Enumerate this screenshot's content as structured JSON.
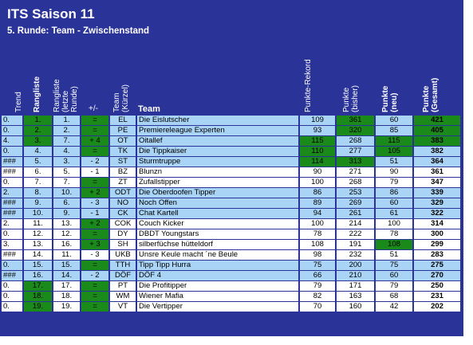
{
  "title": "ITS Saison 11",
  "subtitle": "5. Runde: Team - Zwischenstand",
  "headers": {
    "trend": "Trend",
    "rang": "Rangliste",
    "rang_prev": "Rangliste (letzte Runde)",
    "delta": "+/-",
    "team_short": "Team (Kürzel)",
    "team": "Team",
    "rekord": "Punkte-Rekord",
    "bisher": "Punkte (bisher)",
    "neu": "Punkte (neu)",
    "gesamt": "Punkte (Gesamt)"
  },
  "rows": [
    {
      "trend": "0.",
      "rang": "1.",
      "prev": "1.",
      "delta": "=",
      "short": "EL",
      "team": "Die Eislutscher",
      "rekord": "109",
      "bisher": "361",
      "neu": "60",
      "gesamt": "421"
    },
    {
      "trend": "0.",
      "rang": "2.",
      "prev": "2.",
      "delta": "=",
      "short": "PE",
      "team": "Premiereleague Experten",
      "rekord": "93",
      "bisher": "320",
      "neu": "85",
      "gesamt": "405"
    },
    {
      "trend": "4.",
      "rang": "3.",
      "prev": "7.",
      "delta": "+ 4",
      "short": "OT",
      "team": "Oitallef",
      "rekord": "115",
      "bisher": "268",
      "neu": "115",
      "gesamt": "383"
    },
    {
      "trend": "0.",
      "rang": "4.",
      "prev": "4.",
      "delta": "=",
      "short": "TK",
      "team": "Die Tippkaiser",
      "rekord": "110",
      "bisher": "277",
      "neu": "105",
      "gesamt": "382"
    },
    {
      "trend": "###",
      "rang": "5.",
      "prev": "3.",
      "delta": "- 2",
      "short": "ST",
      "team": "Sturmtruppe",
      "rekord": "114",
      "bisher": "313",
      "neu": "51",
      "gesamt": "364"
    },
    {
      "trend": "###",
      "rang": "6.",
      "prev": "5.",
      "delta": "- 1",
      "short": "BZ",
      "team": "Blunzn",
      "rekord": "90",
      "bisher": "271",
      "neu": "90",
      "gesamt": "361"
    },
    {
      "trend": "0.",
      "rang": "7.",
      "prev": "7.",
      "delta": "=",
      "short": "ZT",
      "team": "Zufallstipper",
      "rekord": "100",
      "bisher": "268",
      "neu": "79",
      "gesamt": "347"
    },
    {
      "trend": "2.",
      "rang": "8.",
      "prev": "10.",
      "delta": "+ 2",
      "short": "ODT",
      "team": "Die Oberdoofen Tipper",
      "rekord": "86",
      "bisher": "253",
      "neu": "86",
      "gesamt": "339"
    },
    {
      "trend": "###",
      "rang": "9.",
      "prev": "6.",
      "delta": "- 3",
      "short": "NO",
      "team": "Noch Offen",
      "rekord": "89",
      "bisher": "269",
      "neu": "60",
      "gesamt": "329"
    },
    {
      "trend": "###",
      "rang": "10.",
      "prev": "9.",
      "delta": "- 1",
      "short": "CK",
      "team": "Chat Kartell",
      "rekord": "94",
      "bisher": "261",
      "neu": "61",
      "gesamt": "322"
    },
    {
      "trend": "2.",
      "rang": "11.",
      "prev": "13.",
      "delta": "+ 2",
      "short": "COK",
      "team": "Couch Kicker",
      "rekord": "100",
      "bisher": "214",
      "neu": "100",
      "gesamt": "314"
    },
    {
      "trend": "0.",
      "rang": "12.",
      "prev": "12.",
      "delta": "=",
      "short": "DY",
      "team": "DBDT Youngstars",
      "rekord": "78",
      "bisher": "222",
      "neu": "78",
      "gesamt": "300"
    },
    {
      "trend": "3.",
      "rang": "13.",
      "prev": "16.",
      "delta": "+ 3",
      "short": "SH",
      "team": "silberfüchse hütteldorf",
      "rekord": "108",
      "bisher": "191",
      "neu": "108",
      "gesamt": "299"
    },
    {
      "trend": "###",
      "rang": "14.",
      "prev": "11.",
      "delta": "- 3",
      "short": "UKB",
      "team": "Unsre Keule macht ´ne Beule",
      "rekord": "98",
      "bisher": "232",
      "neu": "51",
      "gesamt": "283"
    },
    {
      "trend": "0.",
      "rang": "15.",
      "prev": "15.",
      "delta": "=",
      "short": "TTH",
      "team": "Tipp Tipp Hurra",
      "rekord": "75",
      "bisher": "200",
      "neu": "75",
      "gesamt": "275"
    },
    {
      "trend": "###",
      "rang": "16.",
      "prev": "14.",
      "delta": "- 2",
      "short": "DÖF",
      "team": "DÖF 4",
      "rekord": "66",
      "bisher": "210",
      "neu": "60",
      "gesamt": "270"
    },
    {
      "trend": "0.",
      "rang": "17.",
      "prev": "17.",
      "delta": "=",
      "short": "PT",
      "team": "Die Profitipper",
      "rekord": "79",
      "bisher": "171",
      "neu": "79",
      "gesamt": "250"
    },
    {
      "trend": "0.",
      "rang": "18.",
      "prev": "18.",
      "delta": "=",
      "short": "WM",
      "team": "Wiener Mafia",
      "rekord": "82",
      "bisher": "163",
      "neu": "68",
      "gesamt": "231"
    },
    {
      "trend": "0.",
      "rang": "19.",
      "prev": "19.",
      "delta": "=",
      "short": "VT",
      "team": "Die Vertipper",
      "rekord": "70",
      "bisher": "160",
      "neu": "42",
      "gesamt": "202"
    }
  ],
  "highlights": {
    "green_rang_rows": [
      0,
      1,
      2,
      16,
      17,
      18
    ],
    "green_bisher_rows": [
      0,
      1,
      4
    ],
    "green_rekord_rows": [
      2,
      3,
      4
    ],
    "green_neu_rows": [
      2,
      3,
      12
    ],
    "green_gesamt_rows": [
      0,
      1,
      2
    ],
    "blue_rows": [
      0,
      1,
      2,
      3,
      4,
      7,
      8,
      9,
      14,
      15
    ],
    "colors": {
      "green": "#1a8a1a",
      "light_blue": "#a9d4f5",
      "panel": "#2a3398"
    }
  }
}
